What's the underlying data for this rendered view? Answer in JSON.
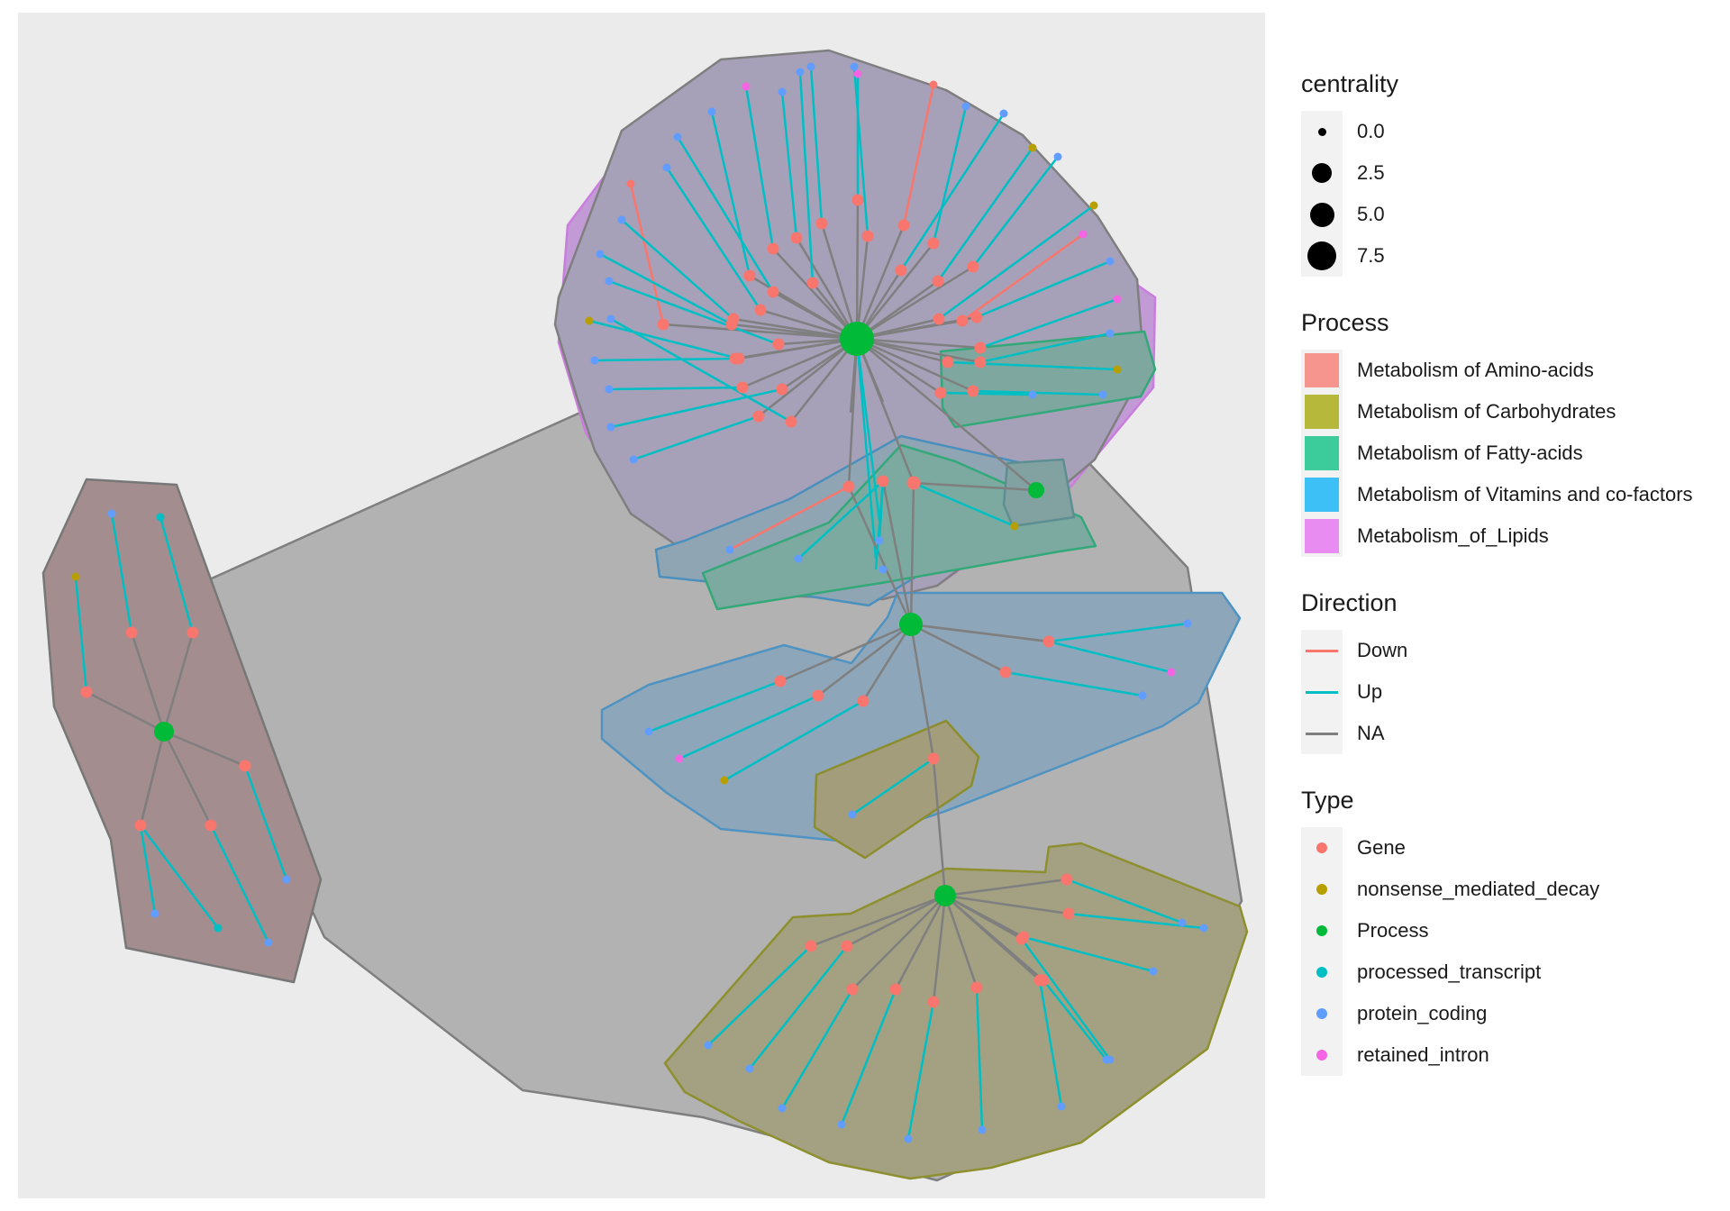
{
  "legend": {
    "centrality": {
      "title": "centrality",
      "items": [
        {
          "label": "0.0",
          "value": 0.0
        },
        {
          "label": "2.5",
          "value": 2.5
        },
        {
          "label": "5.0",
          "value": 5.0
        },
        {
          "label": "7.5",
          "value": 7.5
        }
      ]
    },
    "process": {
      "title": "Process",
      "items": [
        {
          "label": "Metabolism of Amino-acids",
          "color": "#F8766D"
        },
        {
          "label": "Metabolism of Carbohydrates",
          "color": "#A3A500"
        },
        {
          "label": "Metabolism of Fatty-acids",
          "color": "#00BF7D"
        },
        {
          "label": "Metabolism of Vitamins and co-factors",
          "color": "#00B0F6"
        },
        {
          "label": "Metabolism_of_Lipids",
          "color": "#E76BF3"
        }
      ]
    },
    "direction": {
      "title": "Direction",
      "items": [
        {
          "label": "Down",
          "color": "#F8766D"
        },
        {
          "label": "Up",
          "color": "#00BFC4"
        },
        {
          "label": "NA",
          "color": "#7F7F7F"
        }
      ]
    },
    "type": {
      "title": "Type",
      "items": [
        {
          "label": "Gene",
          "color": "#F8766D"
        },
        {
          "label": "nonsense_mediated_decay",
          "color": "#B79F00"
        },
        {
          "label": "Process",
          "color": "#00BA38"
        },
        {
          "label": "processed_transcript",
          "color": "#00BFC4"
        },
        {
          "label": "protein_coding",
          "color": "#619CFF"
        },
        {
          "label": "retained_intron",
          "color": "#F564E3"
        }
      ]
    }
  }
}
